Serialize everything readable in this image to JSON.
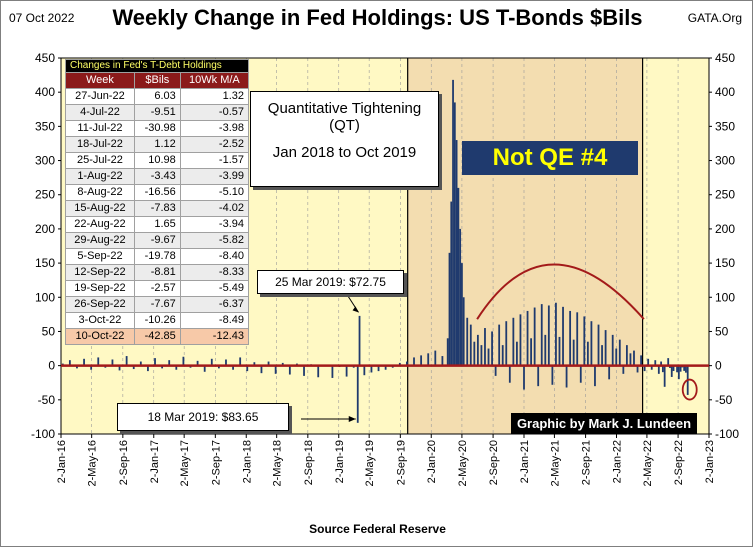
{
  "header": {
    "date": "07 Oct 2022",
    "title": "Weekly Change in Fed Holdings: US T-Bonds $Bils",
    "source": "GATA.Org"
  },
  "footer": {
    "x_source": "Source Federal Reserve"
  },
  "table": {
    "title": "Changes in Fed's T-Debt Holdings",
    "headers": [
      "Week",
      "$Bils",
      "10Wk M/A"
    ],
    "rows": [
      [
        "27-Jun-22",
        "6.03",
        "1.32"
      ],
      [
        "4-Jul-22",
        "-9.51",
        "-0.57"
      ],
      [
        "11-Jul-22",
        "-30.98",
        "-3.98"
      ],
      [
        "18-Jul-22",
        "1.12",
        "-2.52"
      ],
      [
        "25-Jul-22",
        "10.98",
        "-1.57"
      ],
      [
        "1-Aug-22",
        "-3.43",
        "-3.99"
      ],
      [
        "8-Aug-22",
        "-16.56",
        "-5.10"
      ],
      [
        "15-Aug-22",
        "-7.83",
        "-4.02"
      ],
      [
        "22-Aug-22",
        "1.65",
        "-3.94"
      ],
      [
        "29-Aug-22",
        "-9.67",
        "-5.82"
      ],
      [
        "5-Sep-22",
        "-19.78",
        "-8.40"
      ],
      [
        "12-Sep-22",
        "-8.81",
        "-8.33"
      ],
      [
        "19-Sep-22",
        "-2.57",
        "-5.49"
      ],
      [
        "26-Sep-22",
        "-7.67",
        "-6.37"
      ],
      [
        "3-Oct-22",
        "-10.26",
        "-8.49"
      ],
      [
        "10-Oct-22",
        "-42.85",
        "-12.43"
      ]
    ]
  },
  "annotations": {
    "qt_line1": "Quantitative Tightening",
    "qt_line2": "(QT)",
    "qt_line3": "Jan 2018 to Oct 2019",
    "qe_label": "Not QE #4",
    "mar25_label": "25 Mar 2019:  $72.75",
    "mar18_label": "18 Mar 2019:  $83.65",
    "credit": "Graphic by Mark J. Lundeen"
  },
  "chart_data": {
    "type": "bar",
    "title": "Weekly Change in Fed Holdings: US T-Bonds $Bils",
    "xlabel": "Source Federal Reserve",
    "ylabel": "",
    "ylim": [
      -100,
      450
    ],
    "yticks": [
      -100,
      -50,
      0,
      50,
      100,
      150,
      200,
      250,
      300,
      350,
      400,
      450
    ],
    "x_tick_labels": [
      "2-Jan-16",
      "2-May-16",
      "2-Sep-16",
      "2-Jan-17",
      "2-May-17",
      "2-Sep-17",
      "2-Jan-18",
      "2-May-18",
      "2-Sep-18",
      "2-Jan-19",
      "2-May-19",
      "2-Sep-19",
      "2-Jan-20",
      "2-May-20",
      "2-Sep-20",
      "2-Jan-21",
      "2-May-21",
      "2-Sep-21",
      "2-Jan-22",
      "2-May-22",
      "2-Sep-22",
      "2-Jan-23"
    ],
    "x_start": "2016-01-02",
    "x_end": "2023-01-02",
    "series": [
      {
        "color": "#1f3a6e",
        "points": [
          [
            "2016-01-09",
            3
          ],
          [
            "2016-02-06",
            8
          ],
          [
            "2016-03-05",
            -4
          ],
          [
            "2016-04-02",
            10
          ],
          [
            "2016-04-30",
            -6
          ],
          [
            "2016-05-28",
            12
          ],
          [
            "2016-06-25",
            -3
          ],
          [
            "2016-07-23",
            9
          ],
          [
            "2016-08-20",
            -7
          ],
          [
            "2016-09-17",
            14
          ],
          [
            "2016-10-15",
            -5
          ],
          [
            "2016-11-12",
            6
          ],
          [
            "2016-12-10",
            -8
          ],
          [
            "2017-01-07",
            11
          ],
          [
            "2017-02-04",
            -4
          ],
          [
            "2017-03-04",
            8
          ],
          [
            "2017-04-01",
            -6
          ],
          [
            "2017-04-29",
            13
          ],
          [
            "2017-05-27",
            -3
          ],
          [
            "2017-06-24",
            7
          ],
          [
            "2017-07-22",
            -9
          ],
          [
            "2017-08-19",
            10
          ],
          [
            "2017-09-16",
            -4
          ],
          [
            "2017-10-14",
            9
          ],
          [
            "2017-11-11",
            -6
          ],
          [
            "2017-12-09",
            12
          ],
          [
            "2018-01-06",
            -8
          ],
          [
            "2018-02-03",
            5
          ],
          [
            "2018-03-03",
            -11
          ],
          [
            "2018-03-31",
            6
          ],
          [
            "2018-04-28",
            -12
          ],
          [
            "2018-05-26",
            4
          ],
          [
            "2018-06-23",
            -13
          ],
          [
            "2018-07-21",
            3
          ],
          [
            "2018-08-18",
            -15
          ],
          [
            "2018-09-15",
            2
          ],
          [
            "2018-10-13",
            -17
          ],
          [
            "2018-11-10",
            1
          ],
          [
            "2018-12-08",
            -18
          ],
          [
            "2019-01-05",
            -2
          ],
          [
            "2019-02-02",
            -16
          ],
          [
            "2019-03-02",
            -3
          ],
          [
            "2019-03-18",
            -83.65
          ],
          [
            "2019-03-25",
            72.75
          ],
          [
            "2019-04-13",
            -14
          ],
          [
            "2019-05-11",
            -10
          ],
          [
            "2019-06-08",
            -8
          ],
          [
            "2019-07-06",
            -6
          ],
          [
            "2019-08-03",
            -3
          ],
          [
            "2019-08-31",
            4
          ],
          [
            "2019-09-28",
            6
          ],
          [
            "2019-10-26",
            12
          ],
          [
            "2019-11-23",
            15
          ],
          [
            "2019-12-21",
            18
          ],
          [
            "2020-01-18",
            22
          ],
          [
            "2020-02-15",
            14
          ],
          [
            "2020-03-07",
            40
          ],
          [
            "2020-03-14",
            165
          ],
          [
            "2020-03-21",
            240
          ],
          [
            "2020-03-28",
            418
          ],
          [
            "2020-04-04",
            385
          ],
          [
            "2020-04-11",
            330
          ],
          [
            "2020-04-18",
            260
          ],
          [
            "2020-04-25",
            200
          ],
          [
            "2020-05-02",
            150
          ],
          [
            "2020-05-09",
            100
          ],
          [
            "2020-05-23",
            70
          ],
          [
            "2020-06-06",
            60
          ],
          [
            "2020-06-20",
            35
          ],
          [
            "2020-07-04",
            45
          ],
          [
            "2020-07-18",
            30
          ],
          [
            "2020-08-01",
            55
          ],
          [
            "2020-08-15",
            25
          ],
          [
            "2020-08-29",
            50
          ],
          [
            "2020-09-12",
            -15
          ],
          [
            "2020-09-26",
            60
          ],
          [
            "2020-10-10",
            30
          ],
          [
            "2020-10-24",
            65
          ],
          [
            "2020-11-07",
            -25
          ],
          [
            "2020-11-21",
            70
          ],
          [
            "2020-12-05",
            35
          ],
          [
            "2020-12-19",
            75
          ],
          [
            "2021-01-02",
            -35
          ],
          [
            "2021-01-16",
            80
          ],
          [
            "2021-01-30",
            40
          ],
          [
            "2021-02-13",
            85
          ],
          [
            "2021-02-27",
            -30
          ],
          [
            "2021-03-13",
            90
          ],
          [
            "2021-03-27",
            45
          ],
          [
            "2021-04-10",
            88
          ],
          [
            "2021-04-24",
            -28
          ],
          [
            "2021-05-08",
            92
          ],
          [
            "2021-05-22",
            42
          ],
          [
            "2021-06-05",
            86
          ],
          [
            "2021-06-19",
            -32
          ],
          [
            "2021-07-03",
            80
          ],
          [
            "2021-07-17",
            38
          ],
          [
            "2021-07-31",
            78
          ],
          [
            "2021-08-14",
            -25
          ],
          [
            "2021-08-28",
            72
          ],
          [
            "2021-09-11",
            35
          ],
          [
            "2021-09-25",
            65
          ],
          [
            "2021-10-09",
            -30
          ],
          [
            "2021-10-23",
            60
          ],
          [
            "2021-11-06",
            30
          ],
          [
            "2021-11-20",
            52
          ],
          [
            "2021-12-04",
            -20
          ],
          [
            "2021-12-18",
            45
          ],
          [
            "2022-01-01",
            25
          ],
          [
            "2022-01-15",
            38
          ],
          [
            "2022-01-29",
            -12
          ],
          [
            "2022-02-12",
            30
          ],
          [
            "2022-02-26",
            18
          ],
          [
            "2022-03-12",
            22
          ],
          [
            "2022-03-26",
            -10
          ],
          [
            "2022-04-09",
            15
          ],
          [
            "2022-04-23",
            -8
          ],
          [
            "2022-05-07",
            10
          ],
          [
            "2022-05-21",
            -6
          ],
          [
            "2022-06-04",
            8
          ],
          [
            "2022-06-18",
            -12
          ],
          [
            "2022-06-27",
            6.03
          ],
          [
            "2022-07-04",
            -9.51
          ],
          [
            "2022-07-11",
            -30.98
          ],
          [
            "2022-07-18",
            1.12
          ],
          [
            "2022-07-25",
            10.98
          ],
          [
            "2022-08-01",
            -3.43
          ],
          [
            "2022-08-08",
            -16.56
          ],
          [
            "2022-08-15",
            -7.83
          ],
          [
            "2022-08-22",
            1.65
          ],
          [
            "2022-08-29",
            -9.67
          ],
          [
            "2022-09-05",
            -19.78
          ],
          [
            "2022-09-12",
            -8.81
          ],
          [
            "2022-09-19",
            -2.57
          ],
          [
            "2022-09-26",
            -7.67
          ],
          [
            "2022-10-03",
            -10.26
          ],
          [
            "2022-10-10",
            -42.85
          ]
        ]
      }
    ],
    "shaded_regions": [
      {
        "start": "2019-10-01",
        "end": "2022-04-15",
        "color": "#f3ddb0"
      }
    ],
    "guide_lines": [
      {
        "date": "2019-10-01",
        "color": "#000000"
      },
      {
        "date": "2022-04-15",
        "color": "#000000"
      }
    ],
    "curve": {
      "color": "#a31a1a",
      "points": [
        [
          "2020-07-01",
          68
        ],
        [
          "2021-05-01",
          148
        ],
        [
          "2022-04-20",
          68
        ]
      ]
    },
    "highlight_circle": {
      "date": "2022-10-10",
      "value": -35
    },
    "background": "#fff9c4",
    "grid": true,
    "grid_lines": "vertical-dashed"
  },
  "colors": {
    "bar": "#1f3a6e",
    "zero_line": "#a31a1a",
    "table_header": "#8b1a1a"
  }
}
